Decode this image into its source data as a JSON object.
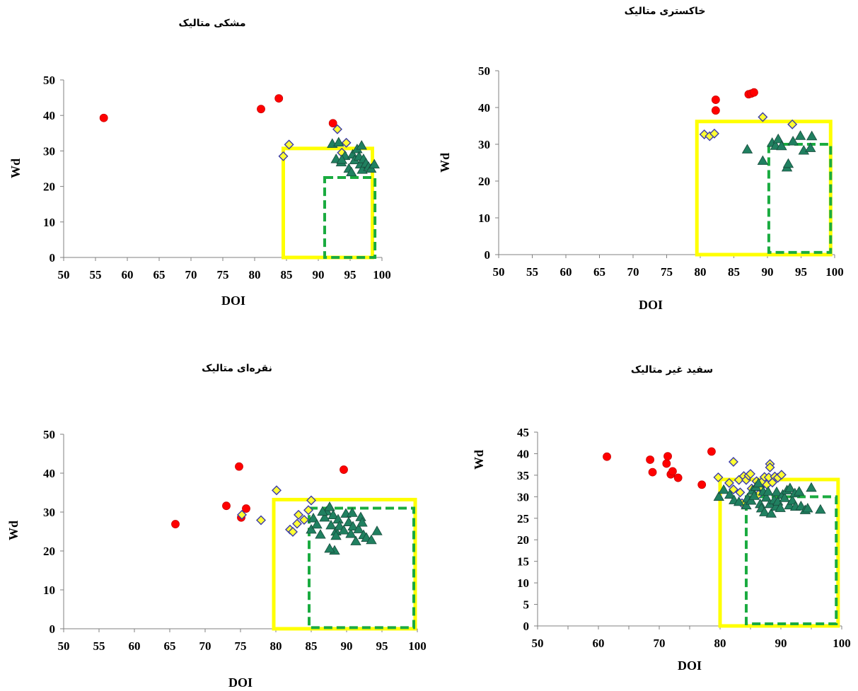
{
  "chart_data": [
    {
      "type": "scatter",
      "title": "مشکی متالیک",
      "xlabel": "DOI",
      "ylabel": "Wd",
      "xlim": [
        50,
        100
      ],
      "ylim": [
        0,
        50
      ],
      "xticks": [
        "50",
        "55",
        "60",
        "65",
        "70",
        "75",
        "80",
        "85",
        "90",
        "95",
        "100"
      ],
      "yticks": [
        "0",
        "10",
        "20",
        "30",
        "40",
        "50"
      ],
      "series": [
        {
          "marker": "circle",
          "color": "#ff0000",
          "points": [
            [
              56.3,
              39.3
            ],
            [
              81,
              41.8
            ],
            [
              83.8,
              44.8
            ],
            [
              92.3,
              37.8
            ]
          ]
        },
        {
          "marker": "diamond",
          "color": "#ffff33",
          "points": [
            [
              84.5,
              28.5
            ],
            [
              85.4,
              31.8
            ],
            [
              93,
              36.1
            ],
            [
              94.4,
              32.3
            ],
            [
              93.7,
              29.5
            ]
          ]
        },
        {
          "marker": "triangle",
          "color": "#208060",
          "points": [
            [
              92.2,
              32
            ],
            [
              93.2,
              32.4
            ],
            [
              92.8,
              27.7
            ],
            [
              93.6,
              26.8
            ],
            [
              94.2,
              28.6
            ],
            [
              94.8,
              25
            ],
            [
              95.2,
              24
            ],
            [
              95.4,
              29
            ],
            [
              95.7,
              27.4
            ],
            [
              96.1,
              30.5
            ],
            [
              96.4,
              28.4
            ],
            [
              96.6,
              26.2
            ],
            [
              96.9,
              24.7
            ],
            [
              97.1,
              27.7
            ],
            [
              97.5,
              26.5
            ],
            [
              97.9,
              25.5
            ],
            [
              98.3,
              25
            ],
            [
              98.8,
              26.2
            ],
            [
              93.7,
              27.5
            ],
            [
              96.8,
              31.5
            ]
          ]
        }
      ],
      "regions": [
        {
          "style": "solid",
          "color": "#ffff00",
          "x": [
            84.5,
            98.5
          ],
          "y": [
            0,
            30.7
          ]
        },
        {
          "style": "dashed",
          "color": "#1aab40",
          "x": [
            91,
            98.9
          ],
          "y": [
            0,
            22.5
          ]
        }
      ]
    },
    {
      "type": "scatter",
      "title": "خاکستری متالیک",
      "xlabel": "DOI",
      "ylabel": "Wd",
      "xlim": [
        50,
        100
      ],
      "ylim": [
        0,
        50
      ],
      "xticks": [
        "50",
        "55",
        "60",
        "65",
        "70",
        "75",
        "80",
        "85",
        "90",
        "95",
        "100"
      ],
      "yticks": [
        "0",
        "10",
        "20",
        "30",
        "40",
        "50"
      ],
      "series": [
        {
          "marker": "circle",
          "color": "#ff0000",
          "points": [
            [
              82.3,
              42.1
            ],
            [
              82.3,
              39.2
            ],
            [
              87.2,
              43.6
            ],
            [
              87.6,
              43.8
            ],
            [
              88,
              44.1
            ]
          ]
        },
        {
          "marker": "diamond",
          "color": "#ffff33",
          "points": [
            [
              80.6,
              32.7
            ],
            [
              81.4,
              32.2
            ],
            [
              82.1,
              32.9
            ],
            [
              89.3,
              37.4
            ],
            [
              93.7,
              35.4
            ]
          ]
        },
        {
          "marker": "triangle",
          "color": "#208060",
          "points": [
            [
              87,
              28.6
            ],
            [
              89.3,
              25.5
            ],
            [
              90.7,
              30.4
            ],
            [
              91.2,
              29.6
            ],
            [
              91.6,
              31.4
            ],
            [
              92.1,
              29.5
            ],
            [
              92.9,
              23.7
            ],
            [
              93.1,
              24.7
            ],
            [
              93.8,
              30.8
            ],
            [
              94.9,
              32.3
            ],
            [
              95.4,
              28.3
            ],
            [
              96.4,
              29
            ],
            [
              96.6,
              32.2
            ]
          ]
        }
      ],
      "regions": [
        {
          "style": "solid",
          "color": "#ffff00",
          "x": [
            79.5,
            99.4
          ],
          "y": [
            0,
            36.2
          ]
        },
        {
          "style": "dashed",
          "color": "#1aab40",
          "x": [
            90.2,
            99.4
          ],
          "y": [
            0.6,
            30
          ]
        }
      ]
    },
    {
      "type": "scatter",
      "title": "نقره‌ای متالیک",
      "xlabel": "DOI",
      "ylabel": "Wd",
      "xlim": [
        50,
        100
      ],
      "ylim": [
        0,
        50
      ],
      "xticks": [
        "50",
        "55",
        "60",
        "65",
        "70",
        "75",
        "80",
        "85",
        "90",
        "95",
        "100"
      ],
      "yticks": [
        "0",
        "10",
        "20",
        "30",
        "40",
        "50"
      ],
      "series": [
        {
          "marker": "circle",
          "color": "#ff0000",
          "points": [
            [
              65.8,
              26.9
            ],
            [
              73,
              31.6
            ],
            [
              74.8,
              41.7
            ],
            [
              75.1,
              28.6
            ],
            [
              75.8,
              30.9
            ],
            [
              89.6,
              40.9
            ]
          ]
        },
        {
          "marker": "diamond",
          "color": "#ffff33",
          "points": [
            [
              75.2,
              29.3
            ],
            [
              77.9,
              27.9
            ],
            [
              80.1,
              35.6
            ],
            [
              82,
              25.5
            ],
            [
              82.4,
              24.9
            ],
            [
              83,
              27
            ],
            [
              83.2,
              29.3
            ],
            [
              84,
              28
            ],
            [
              84.6,
              30.5
            ],
            [
              85,
              33
            ]
          ]
        },
        {
          "marker": "triangle",
          "color": "#208060",
          "points": [
            [
              85,
              25.5
            ],
            [
              85.3,
              28.4
            ],
            [
              85.8,
              26.8
            ],
            [
              86.3,
              24.2
            ],
            [
              86.9,
              28.6
            ],
            [
              87.2,
              30.2
            ],
            [
              87.6,
              31.3
            ],
            [
              87.8,
              26.6
            ],
            [
              88.1,
              29.2
            ],
            [
              88.5,
              25
            ],
            [
              88.5,
              23.9
            ],
            [
              88.8,
              28.1
            ],
            [
              89,
              26.4
            ],
            [
              89.6,
              25.3
            ],
            [
              89.9,
              29.6
            ],
            [
              90.3,
              27.4
            ],
            [
              90.6,
              24.4
            ],
            [
              90.9,
              26.3
            ],
            [
              91.3,
              22.5
            ],
            [
              91.7,
              25.6
            ],
            [
              92,
              28.7
            ],
            [
              92.2,
              27.3
            ],
            [
              92.4,
              24.1
            ],
            [
              92.8,
              23.4
            ],
            [
              93.5,
              22.8
            ],
            [
              94.3,
              25.1
            ],
            [
              86.6,
              30.1
            ],
            [
              90.8,
              29.8
            ],
            [
              88.3,
              20.1
            ],
            [
              87.6,
              20.6
            ]
          ]
        }
      ],
      "regions": [
        {
          "style": "solid",
          "color": "#ffff00",
          "x": [
            79.7,
            99.7
          ],
          "y": [
            0,
            33.2
          ]
        },
        {
          "style": "dashed",
          "color": "#1aab40",
          "x": [
            84.7,
            99.5
          ],
          "y": [
            0.3,
            31
          ]
        }
      ]
    },
    {
      "type": "scatter",
      "title": "سفید غیر متالیک",
      "xlabel": "DOI",
      "ylabel": "Wd",
      "xlim": [
        50,
        100
      ],
      "ylim": [
        0,
        45
      ],
      "xticks": [
        "50",
        "",
        "60",
        "",
        "70",
        "",
        "80",
        "",
        "90",
        "",
        "100"
      ],
      "yticks": [
        "0",
        "5",
        "10",
        "15",
        "20",
        "25",
        "30",
        "35",
        "40",
        "45"
      ],
      "series": [
        {
          "marker": "circle",
          "color": "#ff0000",
          "points": [
            [
              61.4,
              39.3
            ],
            [
              68.5,
              38.6
            ],
            [
              68.9,
              35.7
            ],
            [
              71.2,
              37.7
            ],
            [
              71.4,
              39.4
            ],
            [
              71.9,
              35.2
            ],
            [
              72.2,
              35.9
            ],
            [
              73.1,
              34.4
            ],
            [
              77,
              32.8
            ],
            [
              78.6,
              40.5
            ]
          ]
        },
        {
          "marker": "diamond",
          "color": "#ffff33",
          "points": [
            [
              79.7,
              34.5
            ],
            [
              81.5,
              33.2
            ],
            [
              82.2,
              38.1
            ],
            [
              82.2,
              31.7
            ],
            [
              83.1,
              33.9
            ],
            [
              83.3,
              31
            ],
            [
              83.6,
              28.5
            ],
            [
              83.9,
              34.8
            ],
            [
              84.3,
              33.9
            ],
            [
              84.7,
              34.9
            ],
            [
              85,
              35.3
            ],
            [
              85.2,
              31.9
            ],
            [
              86,
              33.6
            ],
            [
              86.3,
              30.5
            ],
            [
              86.6,
              32.2
            ],
            [
              87,
              33.6
            ],
            [
              87.3,
              34.6
            ],
            [
              87.7,
              32.8
            ],
            [
              88,
              34.5
            ],
            [
              88.2,
              37.6
            ],
            [
              88.2,
              36.8
            ],
            [
              88.6,
              33.3
            ],
            [
              89,
              34.7
            ],
            [
              89.5,
              34.4
            ],
            [
              90.1,
              35.1
            ]
          ]
        },
        {
          "marker": "triangle",
          "color": "#208060",
          "points": [
            [
              79.8,
              30
            ],
            [
              80.6,
              31.6
            ],
            [
              81.6,
              30.5
            ],
            [
              82.3,
              29.2
            ],
            [
              83.1,
              28.8
            ],
            [
              84.3,
              28
            ],
            [
              84.5,
              29.6
            ],
            [
              85.1,
              29.1
            ],
            [
              85.3,
              31.4
            ],
            [
              85.6,
              30.2
            ],
            [
              85.9,
              32.3
            ],
            [
              86.3,
              33.1
            ],
            [
              86.6,
              28.3
            ],
            [
              86.8,
              27.3
            ],
            [
              87.1,
              31.2
            ],
            [
              87.3,
              26.4
            ],
            [
              87.6,
              29.8
            ],
            [
              87.9,
              31.2
            ],
            [
              88.2,
              28.3
            ],
            [
              88.4,
              26.1
            ],
            [
              88.9,
              29.2
            ],
            [
              89.2,
              27.7
            ],
            [
              89.3,
              31.1
            ],
            [
              89.5,
              28.9
            ],
            [
              89.9,
              27.4
            ],
            [
              90.3,
              30.5
            ],
            [
              90.6,
              29.7
            ],
            [
              91,
              31.5
            ],
            [
              91.4,
              28
            ],
            [
              91.5,
              32
            ],
            [
              91.9,
              29.1
            ],
            [
              92.3,
              30.8
            ],
            [
              92.4,
              27.7
            ],
            [
              93,
              31.2
            ],
            [
              93.3,
              27.8
            ],
            [
              94,
              26.9
            ],
            [
              94.4,
              27.3
            ],
            [
              95,
              32.1
            ],
            [
              96.5,
              27
            ]
          ]
        }
      ],
      "regions": [
        {
          "style": "solid",
          "color": "#ffff00",
          "x": [
            80,
            99.4
          ],
          "y": [
            0,
            34
          ]
        },
        {
          "style": "dashed",
          "color": "#1aab40",
          "x": [
            84.3,
            99.1
          ],
          "y": [
            0.5,
            30
          ]
        }
      ]
    }
  ]
}
